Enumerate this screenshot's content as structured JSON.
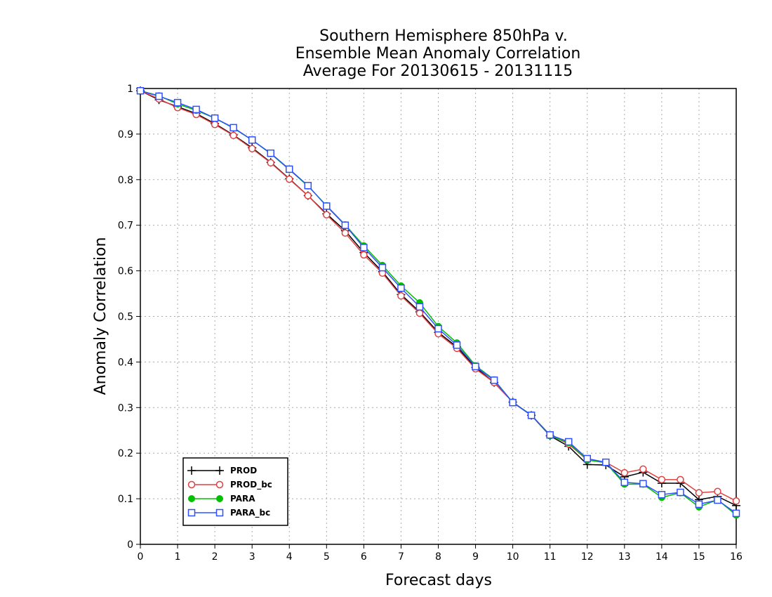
{
  "chart_data": {
    "type": "line",
    "title_lines": [
      "Southern Hemisphere 850hPa v.",
      "Ensemble Mean Anomaly Correlation",
      "Average For 20130615 - 20131115"
    ],
    "xlabel": "Forecast days",
    "ylabel": "Anomaly Correlation",
    "xlim": [
      0,
      16
    ],
    "ylim": [
      0,
      1
    ],
    "x_ticks": [
      0,
      1,
      2,
      3,
      4,
      5,
      6,
      7,
      8,
      9,
      10,
      11,
      12,
      13,
      14,
      15,
      16
    ],
    "y_ticks": [
      0,
      0.1,
      0.2,
      0.3,
      0.4,
      0.5,
      0.6,
      0.7,
      0.8,
      0.9,
      1
    ],
    "y_tick_labels": [
      "0",
      "0.1",
      "0.2",
      "0.3",
      "0.4",
      "0.5",
      "0.6",
      "0.7",
      "0.8",
      "0.9",
      "1"
    ],
    "grid": true,
    "legend_position": "bottom-left",
    "x": [
      0,
      0.5,
      1,
      1.5,
      2,
      2.5,
      3,
      3.5,
      4,
      4.5,
      5,
      5.5,
      6,
      6.5,
      7,
      7.5,
      8,
      8.5,
      9,
      9.5,
      10,
      10.5,
      11,
      11.5,
      12,
      12.5,
      13,
      13.5,
      14,
      14.5,
      15,
      15.5,
      16
    ],
    "series": [
      {
        "name": "PROD",
        "color": "#000000",
        "marker": "plus",
        "values": [
          0.995,
          0.975,
          0.96,
          0.945,
          0.923,
          0.898,
          0.87,
          0.838,
          0.802,
          0.765,
          0.725,
          0.688,
          0.64,
          0.598,
          0.548,
          0.51,
          0.465,
          0.433,
          0.388,
          0.355,
          0.312,
          0.283,
          0.238,
          0.215,
          0.175,
          0.174,
          0.148,
          0.158,
          0.134,
          0.134,
          0.098,
          0.105,
          0.085
        ]
      },
      {
        "name": "PROD_bc",
        "color": "#e04040",
        "marker": "circle",
        "values": [
          0.995,
          0.977,
          0.958,
          0.943,
          0.921,
          0.897,
          0.868,
          0.837,
          0.801,
          0.765,
          0.723,
          0.683,
          0.635,
          0.595,
          0.545,
          0.507,
          0.462,
          0.43,
          0.385,
          0.355,
          0.312,
          0.283,
          0.24,
          0.22,
          0.185,
          0.18,
          0.157,
          0.165,
          0.142,
          0.142,
          0.113,
          0.116,
          0.095
        ]
      },
      {
        "name": "PARA",
        "color": "#00c000",
        "marker": "dot",
        "values": [
          0.995,
          0.984,
          0.966,
          0.952,
          0.935,
          0.913,
          0.887,
          0.857,
          0.822,
          0.786,
          0.743,
          0.701,
          0.655,
          0.612,
          0.567,
          0.53,
          0.478,
          0.442,
          0.392,
          0.361,
          0.311,
          0.284,
          0.238,
          0.223,
          0.185,
          0.179,
          0.132,
          0.132,
          0.103,
          0.113,
          0.082,
          0.098,
          0.064
        ]
      },
      {
        "name": "PARA_bc",
        "color": "#3050ff",
        "marker": "square",
        "values": [
          0.995,
          0.983,
          0.969,
          0.954,
          0.935,
          0.914,
          0.887,
          0.858,
          0.823,
          0.787,
          0.742,
          0.7,
          0.651,
          0.607,
          0.562,
          0.521,
          0.473,
          0.437,
          0.39,
          0.36,
          0.311,
          0.283,
          0.24,
          0.225,
          0.188,
          0.18,
          0.136,
          0.133,
          0.109,
          0.114,
          0.088,
          0.097,
          0.068
        ]
      }
    ]
  }
}
